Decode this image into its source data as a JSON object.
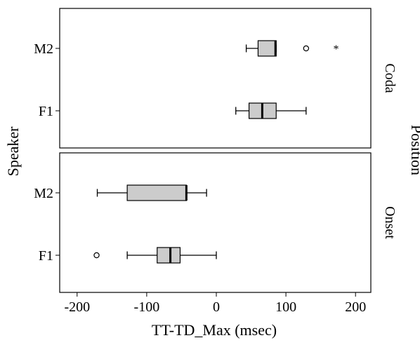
{
  "chart_data": {
    "type": "boxplot",
    "orientation": "horizontal",
    "xlabel": "TT-TD_Max (msec)",
    "ylabel": "Speaker",
    "facet_label": "Position",
    "xlim": [
      -225,
      222
    ],
    "xticks": [
      -200,
      -100,
      0,
      100,
      200
    ],
    "tick_labels": [
      "-200",
      "-100",
      "0",
      "100",
      "200"
    ],
    "box_fill": "#cccccc",
    "panels": [
      {
        "name": "Coda",
        "boxes": [
          {
            "speaker": "M2",
            "whisker_low": 43,
            "q1": 60,
            "median": 85,
            "q3": 86,
            "whisker_high": 86,
            "median_bold": true,
            "outliers": [
              {
                "value": 129,
                "symbol": "circle"
              },
              {
                "value": 172,
                "symbol": "star"
              }
            ]
          },
          {
            "speaker": "F1",
            "whisker_low": 28,
            "q1": 47,
            "median": 66,
            "q3": 86,
            "whisker_high": 129,
            "median_bold": true,
            "outliers": []
          }
        ]
      },
      {
        "name": "Onset",
        "boxes": [
          {
            "speaker": "M2",
            "whisker_low": -171,
            "q1": -128,
            "median": -43,
            "q3": -43,
            "whisker_high": -14,
            "median_bold": true,
            "outliers": []
          },
          {
            "speaker": "F1",
            "whisker_low": -128,
            "q1": -85,
            "median": -66,
            "q3": -52,
            "whisker_high": 0,
            "median_bold": true,
            "outliers": [
              {
                "value": -172,
                "symbol": "circle"
              }
            ]
          }
        ]
      }
    ]
  }
}
